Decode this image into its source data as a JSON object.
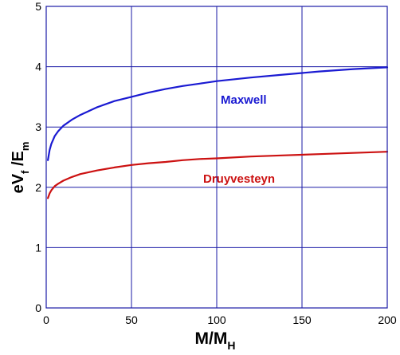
{
  "chart_data": {
    "type": "line",
    "title": "",
    "xlabel": {
      "main": "M/M",
      "sub": "H"
    },
    "ylabel": {
      "p1": "eV",
      "s1": "f",
      "p2": " /E",
      "s2": "m"
    },
    "xlim": [
      0,
      200
    ],
    "ylim": [
      0,
      5
    ],
    "xticks": [
      "0",
      "50",
      "100",
      "150",
      "200"
    ],
    "yticks": [
      "0",
      "1",
      "2",
      "3",
      "4",
      "5"
    ],
    "grid": true,
    "legend": "inline labels",
    "grid_color": "#1a1aa6",
    "series": [
      {
        "name": "Maxwell",
        "color": "#1a1ad2",
        "x": [
          1,
          2,
          3,
          5,
          7,
          10,
          15,
          20,
          30,
          40,
          50,
          60,
          70,
          80,
          90,
          100,
          120,
          140,
          160,
          180,
          200
        ],
        "y": [
          2.45,
          2.62,
          2.72,
          2.85,
          2.93,
          3.02,
          3.12,
          3.2,
          3.33,
          3.43,
          3.5,
          3.57,
          3.63,
          3.68,
          3.72,
          3.76,
          3.82,
          3.87,
          3.92,
          3.96,
          3.99
        ]
      },
      {
        "name": "Druyvesteyn",
        "color": "#cc1111",
        "x": [
          1,
          2,
          3,
          5,
          7,
          10,
          15,
          20,
          30,
          40,
          50,
          60,
          70,
          80,
          90,
          100,
          120,
          140,
          160,
          180,
          200
        ],
        "y": [
          1.82,
          1.9,
          1.95,
          2.02,
          2.06,
          2.11,
          2.17,
          2.22,
          2.28,
          2.33,
          2.37,
          2.4,
          2.42,
          2.45,
          2.47,
          2.48,
          2.51,
          2.53,
          2.55,
          2.57,
          2.59
        ]
      }
    ]
  }
}
